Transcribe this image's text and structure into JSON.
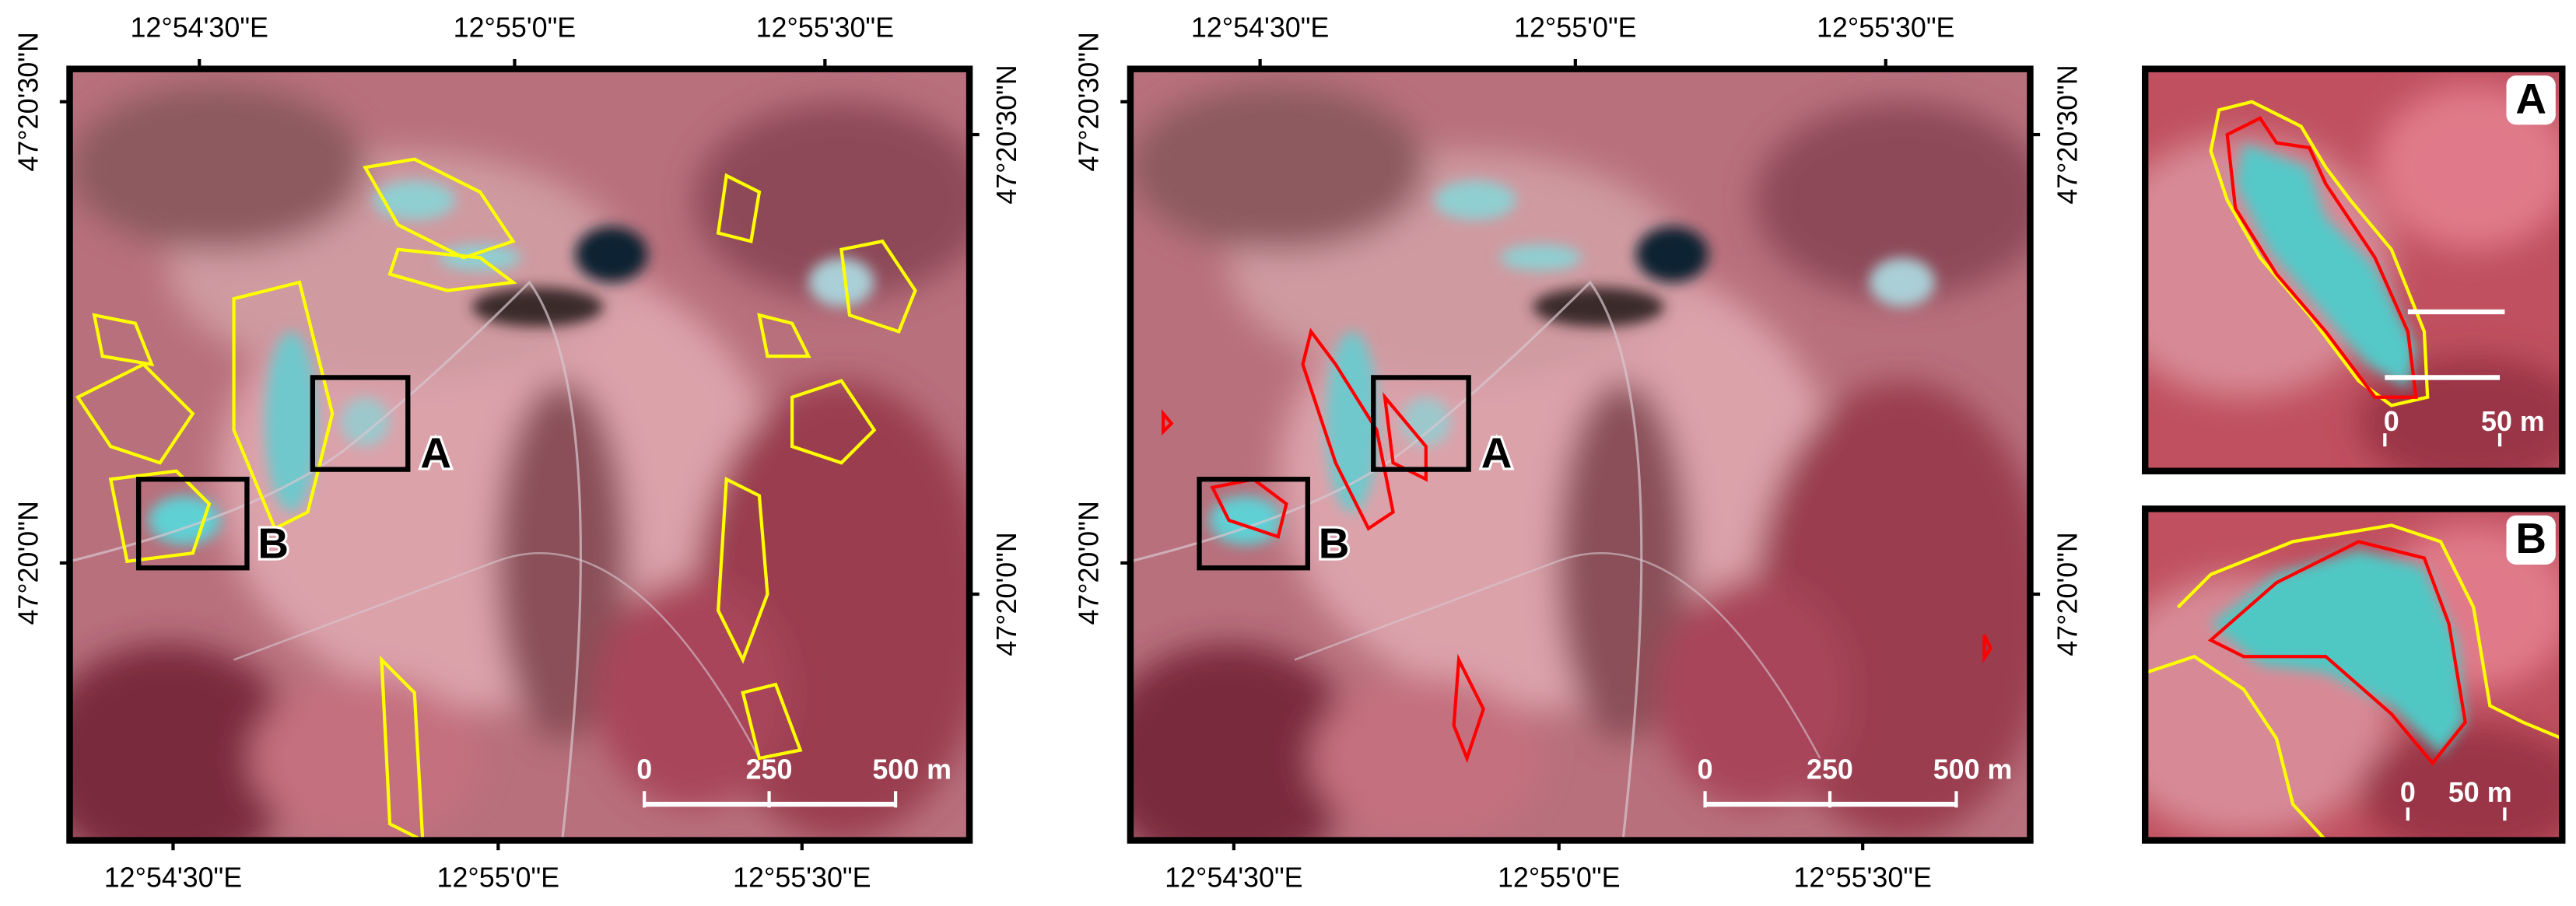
{
  "panels": [
    {
      "x_labels_top": [
        "12°54'30\"E",
        "12°55'0\"E",
        "12°55'30\"E"
      ],
      "x_labels_bottom": [
        "12°54'30\"E",
        "12°55'0\"E",
        "12°55'30\"E"
      ],
      "y_labels_left": [
        "47°20'30\"N",
        "47°20'0\"N"
      ],
      "y_labels_right": [
        "47°20'30\"N",
        "47°20'0\"N"
      ],
      "scale_labels": [
        "0",
        "250",
        "500 m"
      ],
      "boxes": [
        "A",
        "B"
      ]
    },
    {
      "x_labels_top": [
        "12°54'30\"E",
        "12°55'0\"E",
        "12°55'30\"E"
      ],
      "x_labels_bottom": [
        "12°54'30\"E",
        "12°55'0\"E",
        "12°55'30\"E"
      ],
      "y_labels_left": [
        "47°20'30\"N",
        "47°20'0\"N"
      ],
      "y_labels_right": [
        "47°20'30\"N",
        "47°20'0\"N"
      ],
      "scale_labels": [
        "0",
        "250",
        "500 m"
      ],
      "boxes": [
        "A",
        "B"
      ]
    }
  ],
  "insets": [
    {
      "label": "A",
      "scale_labels": [
        "0",
        "50 m"
      ]
    },
    {
      "label": "B",
      "scale_labels": [
        "0",
        "50 m"
      ]
    }
  ]
}
